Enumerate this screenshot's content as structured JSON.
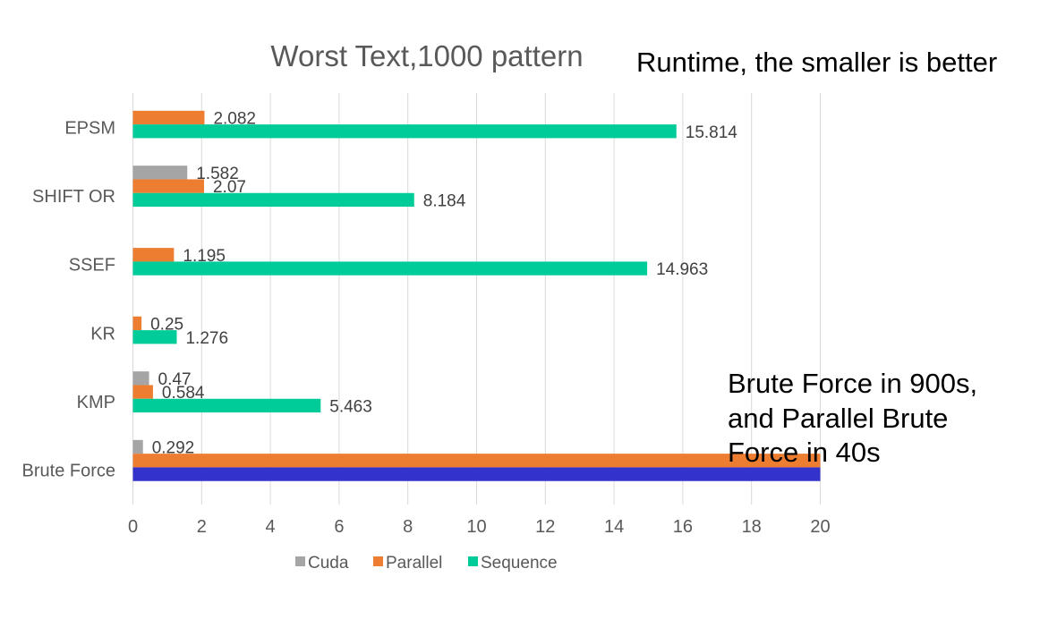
{
  "chart_data": {
    "type": "bar",
    "orientation": "horizontal",
    "title": "Worst Text,1000 pattern",
    "categories": [
      "EPSM",
      "SHIFT OR",
      "SSEF",
      "KR",
      "KMP",
      "Brute Force"
    ],
    "series": [
      {
        "name": "Cuda",
        "color": "#a5a5a5",
        "values": [
          null,
          1.582,
          null,
          null,
          0.47,
          0.292
        ],
        "labels": [
          "",
          "1.582",
          "",
          "",
          "0.47",
          "0.292"
        ]
      },
      {
        "name": "Parallel",
        "color": "#ed7d31",
        "values": [
          2.082,
          2.07,
          1.195,
          0.25,
          0.584,
          20
        ],
        "labels": [
          "2.082",
          "2.07",
          "1.195",
          "0.25",
          "0.584",
          ""
        ]
      },
      {
        "name": "Sequence",
        "color": "#00cc99",
        "values": [
          15.814,
          8.184,
          14.963,
          1.276,
          5.463,
          20
        ],
        "labels": [
          "15.814",
          "8.184",
          "14.963",
          "1.276",
          "5.463",
          ""
        ]
      }
    ],
    "highlight_color": "#3333cc",
    "xlim": [
      0,
      20
    ],
    "xticks": [
      "0",
      "2",
      "4",
      "6",
      "8",
      "10",
      "12",
      "14",
      "16",
      "18",
      "20"
    ],
    "grid": true,
    "legend_position": "bottom"
  },
  "annotations": {
    "runtime_note": "Runtime, the smaller is better",
    "brute_force_note": [
      "Brute Force in 900s,",
      "and Parallel Brute",
      "Force in 40s"
    ]
  }
}
